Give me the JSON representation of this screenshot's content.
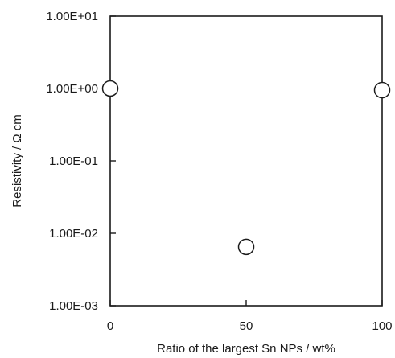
{
  "chart_data": {
    "type": "scatter",
    "title": "",
    "xlabel": "Ratio of the largest Sn NPs / wt%",
    "ylabel": "Resistivity / Ω cm",
    "x_scale": "linear",
    "y_scale": "log",
    "xlim": [
      0,
      100
    ],
    "ylim": [
      0.001,
      10
    ],
    "x_ticks": [
      0,
      50,
      100
    ],
    "x_tick_labels": [
      "0",
      "50",
      "100"
    ],
    "y_ticks": [
      0.001,
      0.01,
      0.1,
      1,
      10
    ],
    "y_tick_labels": [
      "1.00E-03",
      "1.00E-02",
      "1.00E-01",
      "1.00E+00",
      "1.00E+01"
    ],
    "grid": false,
    "legend": "none",
    "marker": "open-circle",
    "series": [
      {
        "points": [
          {
            "x": 0,
            "y": 1.0
          },
          {
            "x": 50,
            "y": 0.0065
          },
          {
            "x": 100,
            "y": 0.95
          }
        ]
      }
    ]
  }
}
